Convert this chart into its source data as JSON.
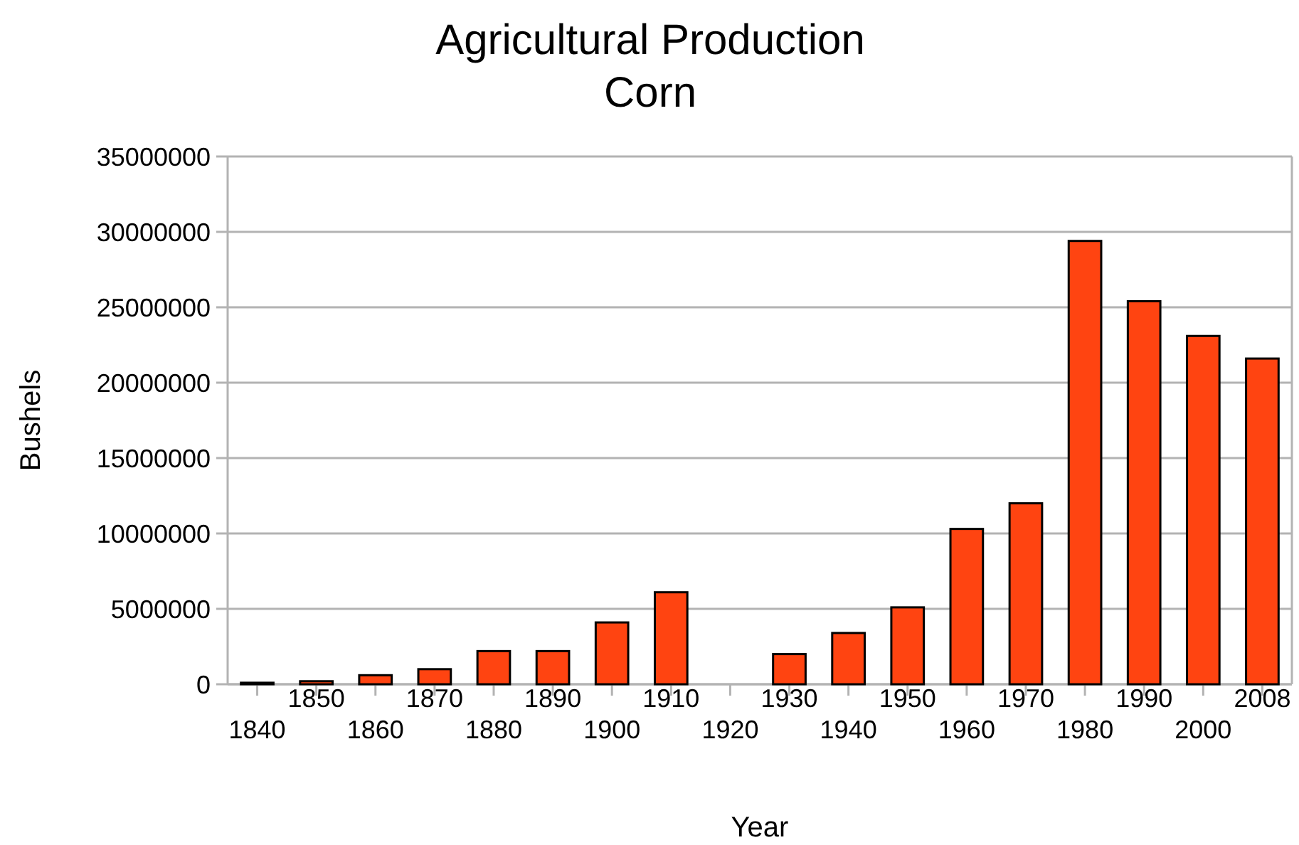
{
  "chart_data": {
    "type": "bar",
    "title": "Agricultural Production",
    "subtitle": "Corn",
    "xlabel": "Year",
    "ylabel": "Bushels",
    "categories": [
      "1840",
      "1850",
      "1860",
      "1870",
      "1880",
      "1890",
      "1900",
      "1910",
      "1920",
      "1930",
      "1940",
      "1950",
      "1960",
      "1970",
      "1980",
      "1990",
      "2000",
      "2008"
    ],
    "values": [
      100000,
      200000,
      600000,
      1000000,
      2200000,
      2200000,
      4100000,
      6100000,
      null,
      2000000,
      3400000,
      5100000,
      10300000,
      12000000,
      29400000,
      25400000,
      23100000,
      21600000
    ],
    "color": "#ff4411",
    "ylim": [
      0,
      35000000
    ],
    "yticks": [
      0,
      5000000,
      10000000,
      15000000,
      20000000,
      25000000,
      30000000,
      35000000
    ],
    "grid": "y"
  }
}
